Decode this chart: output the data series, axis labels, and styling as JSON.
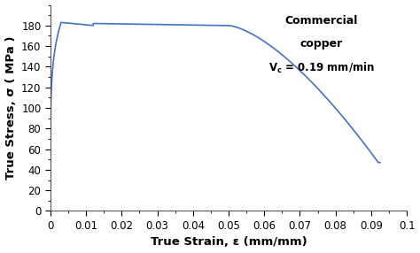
{
  "xlabel": "True Strain, ε (mm/mm)",
  "ylabel": "True Stress, σ ( MPa )",
  "annotation_line1": "Commercial",
  "annotation_line2": "copper",
  "annotation_line3": "Vᴄ = 0.19 mm/min",
  "xlim": [
    0,
    0.1
  ],
  "ylim": [
    0,
    200
  ],
  "xticks": [
    0,
    0.01,
    0.02,
    0.03,
    0.04,
    0.05,
    0.06,
    0.07,
    0.08,
    0.09,
    0.1
  ],
  "yticks": [
    0,
    20,
    40,
    60,
    80,
    100,
    120,
    140,
    160,
    180
  ],
  "line_color": "#4472c4",
  "background_color": "#ffffff"
}
